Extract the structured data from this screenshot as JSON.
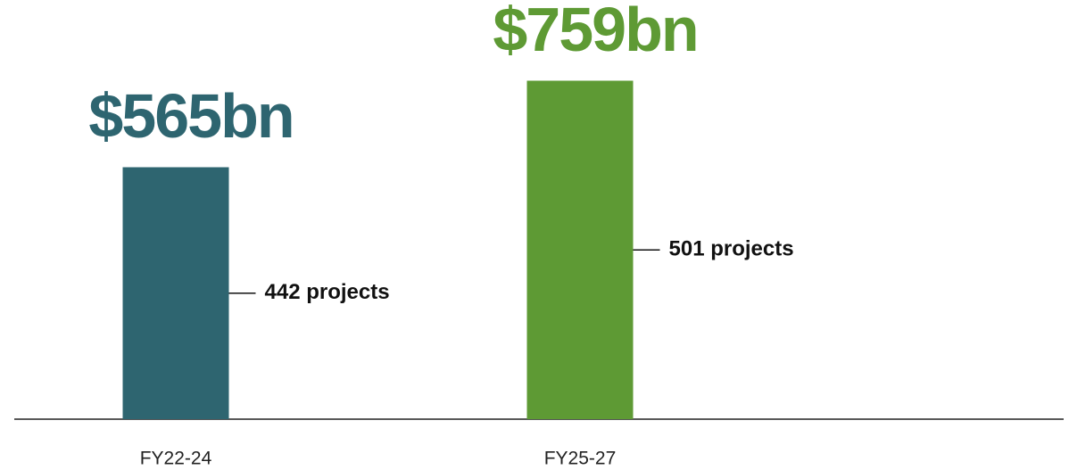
{
  "chart_data": {
    "type": "bar",
    "categories": [
      "FY22-24",
      "FY25-27"
    ],
    "values": [
      565,
      759
    ],
    "value_labels": [
      "$565bn",
      "$759bn"
    ],
    "colors": [
      "#2e6570",
      "#5e9a34"
    ],
    "projects": {
      "values": [
        442,
        501
      ],
      "value_labels": [
        "442 projects",
        "501 projects"
      ]
    },
    "ylim": [
      0,
      800
    ]
  }
}
